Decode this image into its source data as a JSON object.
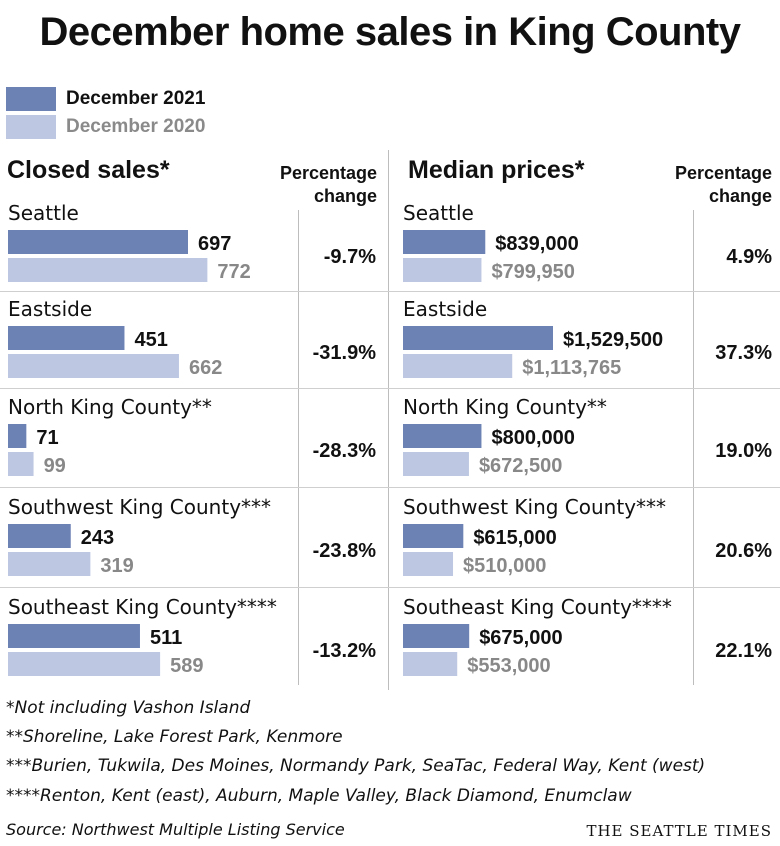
{
  "title": "December home sales in King County",
  "legend": [
    {
      "label": "December 2021",
      "color": "#6c82b5"
    },
    {
      "label": "December 2020",
      "color": "#bdc7e2"
    }
  ],
  "colors": {
    "current": "#6c82b5",
    "previous": "#bdc7e2",
    "previous_text": "#888888"
  },
  "headers": {
    "closed_sales": "Closed sales*",
    "median_prices": "Median prices*",
    "pct_change_line1": "Percentage",
    "pct_change_line2": "change"
  },
  "chart_data": [
    {
      "type": "bar",
      "title": "Closed sales*",
      "categories": [
        "Seattle",
        "Eastside",
        "North King County**",
        "Southwest King County***",
        "Southeast King County****"
      ],
      "series": [
        {
          "name": "December 2021",
          "values": [
            697,
            451,
            71,
            243,
            511
          ],
          "labels": [
            "697",
            "451",
            "71",
            "243",
            "511"
          ]
        },
        {
          "name": "December 2020",
          "values": [
            772,
            662,
            99,
            319,
            589
          ],
          "labels": [
            "772",
            "662",
            "99",
            "319",
            "589"
          ]
        }
      ],
      "percentage_change": [
        "-9.7%",
        "-31.9%",
        "-28.3%",
        "-23.8%",
        "-13.2%"
      ]
    },
    {
      "type": "bar",
      "title": "Median prices*",
      "categories": [
        "Seattle",
        "Eastside",
        "North King County**",
        "Southwest King County***",
        "Southeast King County****"
      ],
      "series": [
        {
          "name": "December 2021",
          "values": [
            839000,
            1529500,
            800000,
            615000,
            675000
          ],
          "labels": [
            "$839,000",
            "$1,529,500",
            "$800,000",
            "$615,000",
            "$675,000"
          ]
        },
        {
          "name": "December 2020",
          "values": [
            799950,
            1113765,
            672500,
            510000,
            553000
          ],
          "labels": [
            "$799,950",
            "$1,113,765",
            "$672,500",
            "$510,000",
            "$553,000"
          ]
        }
      ],
      "percentage_change": [
        "4.9%",
        "37.3%",
        "19.0%",
        "20.6%",
        "22.1%"
      ]
    }
  ],
  "footnotes": [
    "*Not including Vashon Island",
    "**Shoreline, Lake Forest Park, Kenmore",
    "***Burien, Tukwila, Des Moines, Normandy Park, SeaTac, Federal Way, Kent (west)",
    "****Renton, Kent (east), Auburn, Maple Valley, Black Diamond, Enumclaw"
  ],
  "source": "Source: Northwest Multiple Listing Service",
  "brand": "THE SEATTLE TIMES"
}
